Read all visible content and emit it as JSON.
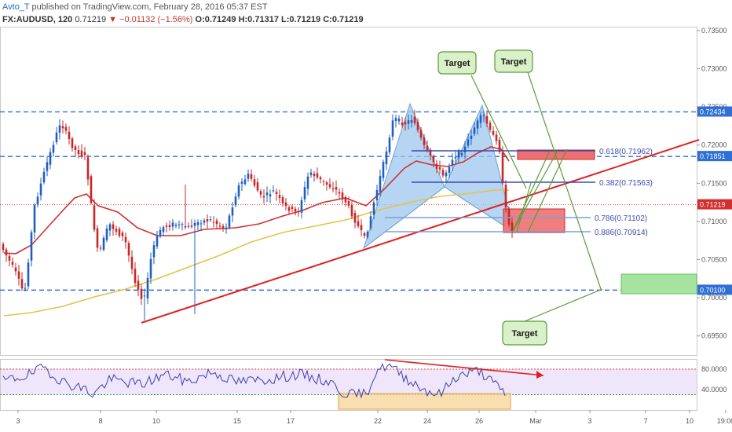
{
  "header": {
    "author": "Avto_T",
    "published": "published on TradingView.com, February 28, 2016 05:37 EST",
    "symbol": "FX:AUDUSD, 120",
    "last": "0.71219",
    "change": "▼ −0.01132 (−1.56%)",
    "open": "O:0.71249",
    "high": "H:0.71317",
    "low": "L:0.71219",
    "close": "C:0.71219"
  },
  "colors": {
    "up_candle": "#1f5fbf",
    "down_candle": "#c62828",
    "ma_red": "#d32f2f",
    "ma_yellow": "#e8c04a",
    "level_dash": "#2f6fd6",
    "trendline": "#e02020",
    "pattern_fill": "#9ec7ee",
    "target_fill": "#d9f0c8",
    "target_stroke": "#5a9a3a",
    "rsi_line": "#3b3fb0",
    "rsi_bg": "#efe6fb"
  },
  "chart_data": {
    "type": "candlestick",
    "symbol": "FX:AUDUSD",
    "timeframe": "120",
    "x_tick_labels": [
      "3",
      "8",
      "10",
      "15",
      "17",
      "22",
      "24",
      "26",
      "Mar",
      "3",
      "7",
      "10",
      "19:00"
    ],
    "price_axis": {
      "ticks": [
        "0.73500",
        "0.73000",
        "0.72500",
        "0.72000",
        "0.71500",
        "0.71000",
        "0.70500",
        "0.70000",
        "0.69500"
      ],
      "ylim": [
        0.6925,
        0.7355
      ]
    },
    "price_labels": {
      "level_high": "0.72434",
      "level_mid": "0.71851",
      "current": "0.71219",
      "level_low": "0.70100"
    },
    "horizontal_levels": [
      0.72434,
      0.71851,
      0.701
    ],
    "current_price": 0.71219,
    "fib_levels": [
      {
        "label": "0.618(0.71962)",
        "value": 0.71962
      },
      {
        "label": "0.382(0.71563)",
        "value": 0.71563
      },
      {
        "label": "0.786(0.71102)",
        "value": 0.71102
      },
      {
        "label": "0.886(0.70914)",
        "value": 0.70914
      }
    ],
    "annotations": [
      "Target",
      "Target",
      "Target"
    ],
    "rsi": {
      "ticks": [
        "80.0000",
        "40.0000"
      ],
      "upper": 80,
      "lower": 30
    },
    "note": "Harmonic (bat) pattern with two bearish targets and one lower target zone; RSI bearish divergence arrow."
  }
}
